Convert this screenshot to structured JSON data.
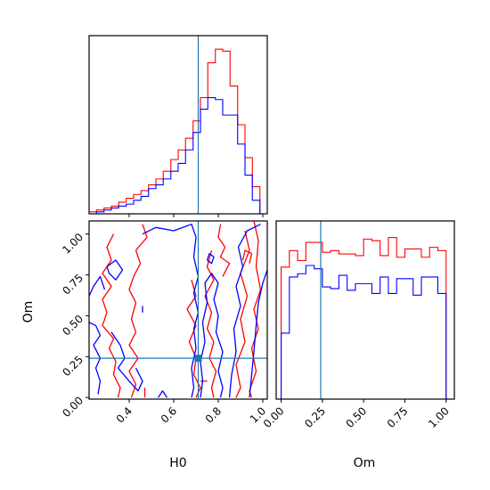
{
  "colors": {
    "series_a": "#ff0000",
    "series_b": "#0000ff",
    "truth": "#1f77b4",
    "axes": "#000000"
  },
  "chart_data": [
    {
      "type": "histogram",
      "panel": "H0 marginal",
      "xlim": [
        0.22,
        1.02
      ],
      "xticks": [
        0.4,
        0.6,
        0.8,
        1.0
      ],
      "tick_labels_shown": false,
      "truth_line_x": 0.71,
      "bin_edges": [
        0.22,
        0.253,
        0.287,
        0.32,
        0.353,
        0.387,
        0.42,
        0.453,
        0.487,
        0.52,
        0.553,
        0.587,
        0.62,
        0.653,
        0.687,
        0.72,
        0.753,
        0.787,
        0.82,
        0.853,
        0.887,
        0.92,
        0.953,
        0.987,
        1.02
      ],
      "series": [
        {
          "color": "red",
          "counts": [
            1,
            2,
            3,
            4,
            6,
            8,
            10,
            12,
            15,
            18,
            22,
            28,
            33,
            39,
            48,
            60,
            78,
            85,
            84,
            66,
            46,
            29,
            14,
            0
          ]
        },
        {
          "color": "blue",
          "counts": [
            0,
            1,
            2,
            3,
            4,
            5,
            7,
            9,
            13,
            15,
            18,
            22,
            26,
            33,
            42,
            54,
            60,
            59,
            51,
            51,
            36,
            20,
            7,
            0
          ]
        }
      ]
    },
    {
      "type": "contour",
      "panel": "H0 vs Om",
      "xlabel": "H0",
      "ylabel": "Om",
      "xlim": [
        0.22,
        1.02
      ],
      "ylim": [
        -0.01,
        1.08
      ],
      "xticks": [
        "0.4",
        "0.6",
        "0.8",
        "1.0"
      ],
      "yticks": [
        "0.00",
        "0.25",
        "0.50",
        "0.75",
        "1.00"
      ],
      "truth_point": {
        "H0": 0.71,
        "Om": 0.24
      },
      "description_series": [
        {
          "color": "red",
          "levels": "smoothed 2D density contours"
        },
        {
          "color": "blue",
          "levels": "smoothed 2D density contours"
        }
      ]
    },
    {
      "type": "histogram",
      "panel": "Om marginal",
      "xlabel": "Om",
      "xlim": [
        -0.03,
        1.05
      ],
      "xticks": [
        "0.00",
        "0.25",
        "0.50",
        "0.75",
        "1.00"
      ],
      "truth_line_x": 0.24,
      "bin_edges": [
        0.0,
        0.05,
        0.1,
        0.15,
        0.2,
        0.25,
        0.3,
        0.35,
        0.4,
        0.45,
        0.5,
        0.55,
        0.6,
        0.65,
        0.7,
        0.75,
        0.8,
        0.85,
        0.9,
        0.95,
        1.0
      ],
      "series": [
        {
          "color": "red",
          "counts": [
            80,
            90,
            84,
            95,
            95,
            89,
            90,
            88,
            88,
            87,
            97,
            96,
            87,
            98,
            86,
            91,
            91,
            86,
            92,
            90
          ]
        },
        {
          "color": "blue",
          "counts": [
            40,
            74,
            76,
            81,
            79,
            68,
            67,
            75,
            66,
            70,
            70,
            64,
            74,
            64,
            73,
            73,
            63,
            74,
            74,
            64
          ]
        }
      ]
    }
  ]
}
